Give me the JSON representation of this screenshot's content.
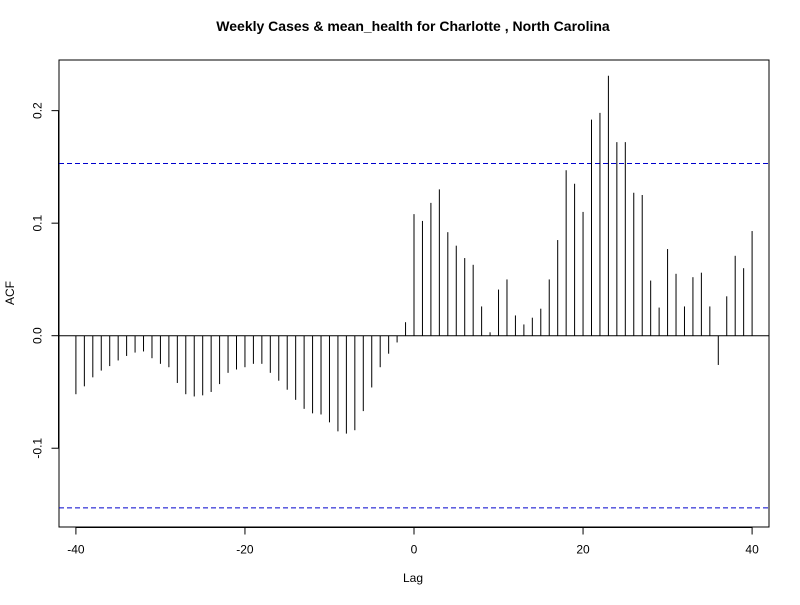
{
  "chart_data": {
    "type": "bar",
    "subtype": "acf-lollipop",
    "title": "Weekly Cases & mean_health for Charlotte , North Carolina",
    "xlabel": "Lag",
    "ylabel": "ACF",
    "xlim": [
      -42,
      42
    ],
    "ylim": [
      -0.17,
      0.245
    ],
    "x_ticks": [
      -40,
      -20,
      0,
      20,
      40
    ],
    "x_tick_labels": [
      "-40",
      "-20",
      "0",
      "20",
      "40"
    ],
    "y_ticks": [
      -0.1,
      0.0,
      0.1,
      0.2
    ],
    "y_tick_labels": [
      "-0.1",
      "0.0",
      "0.1",
      "0.2"
    ],
    "confidence_bound": 0.153,
    "grid": false,
    "colors": {
      "bars": "#000000",
      "confidence": "#0000cc",
      "zero_line": "#000000"
    },
    "lags": [
      -40,
      -39,
      -38,
      -37,
      -36,
      -35,
      -34,
      -33,
      -32,
      -31,
      -30,
      -29,
      -28,
      -27,
      -26,
      -25,
      -24,
      -23,
      -22,
      -21,
      -20,
      -19,
      -18,
      -17,
      -16,
      -15,
      -14,
      -13,
      -12,
      -11,
      -10,
      -9,
      -8,
      -7,
      -6,
      -5,
      -4,
      -3,
      -2,
      -1,
      0,
      1,
      2,
      3,
      4,
      5,
      6,
      7,
      8,
      9,
      10,
      11,
      12,
      13,
      14,
      15,
      16,
      17,
      18,
      19,
      20,
      21,
      22,
      23,
      24,
      25,
      26,
      27,
      28,
      29,
      30,
      31,
      32,
      33,
      34,
      35,
      36,
      37,
      38,
      39,
      40
    ],
    "values": [
      -0.052,
      -0.045,
      -0.037,
      -0.031,
      -0.027,
      -0.022,
      -0.018,
      -0.015,
      -0.014,
      -0.02,
      -0.025,
      -0.028,
      -0.042,
      -0.052,
      -0.054,
      -0.053,
      -0.05,
      -0.043,
      -0.033,
      -0.03,
      -0.028,
      -0.025,
      -0.025,
      -0.033,
      -0.04,
      -0.048,
      -0.057,
      -0.065,
      -0.069,
      -0.07,
      -0.077,
      -0.085,
      -0.087,
      -0.084,
      -0.067,
      -0.046,
      -0.028,
      -0.016,
      -0.006,
      0.012,
      0.108,
      0.102,
      0.118,
      0.13,
      0.092,
      0.08,
      0.069,
      0.063,
      0.026,
      0.003,
      0.041,
      0.05,
      0.018,
      0.01,
      0.016,
      0.024,
      0.05,
      0.085,
      0.147,
      0.135,
      0.11,
      0.192,
      0.198,
      0.231,
      0.172,
      0.172,
      0.127,
      0.125,
      0.049,
      0.025,
      0.077,
      0.055,
      0.026,
      0.052,
      0.056,
      0.026,
      -0.026,
      0.035,
      0.071,
      0.06,
      0.093
    ]
  }
}
